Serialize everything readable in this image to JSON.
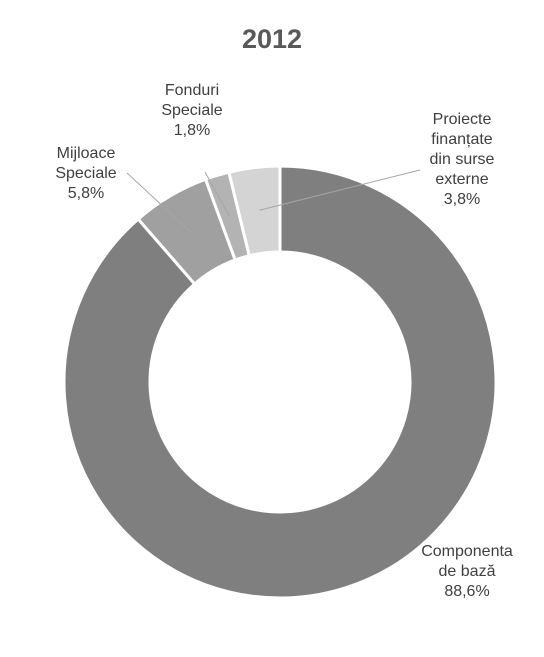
{
  "chart_data": {
    "type": "pie",
    "variant": "donut",
    "title": "2012",
    "slices": [
      {
        "label_lines": [
          "Componenta",
          "de bază"
        ],
        "value": 88.6,
        "value_text": "88,6%",
        "color": "#7f7f7f"
      },
      {
        "label_lines": [
          "Mijloace",
          "Speciale"
        ],
        "value": 5.8,
        "value_text": "5,8%",
        "color": "#a0a0a0"
      },
      {
        "label_lines": [
          "Fonduri",
          "Speciale"
        ],
        "value": 1.8,
        "value_text": "1,8%",
        "color": "#b3b3b3"
      },
      {
        "label_lines": [
          "Proiecte",
          "finanțate",
          "din surse",
          "externe"
        ],
        "value": 3.8,
        "value_text": "3,8%",
        "color": "#d4d4d4"
      }
    ]
  }
}
